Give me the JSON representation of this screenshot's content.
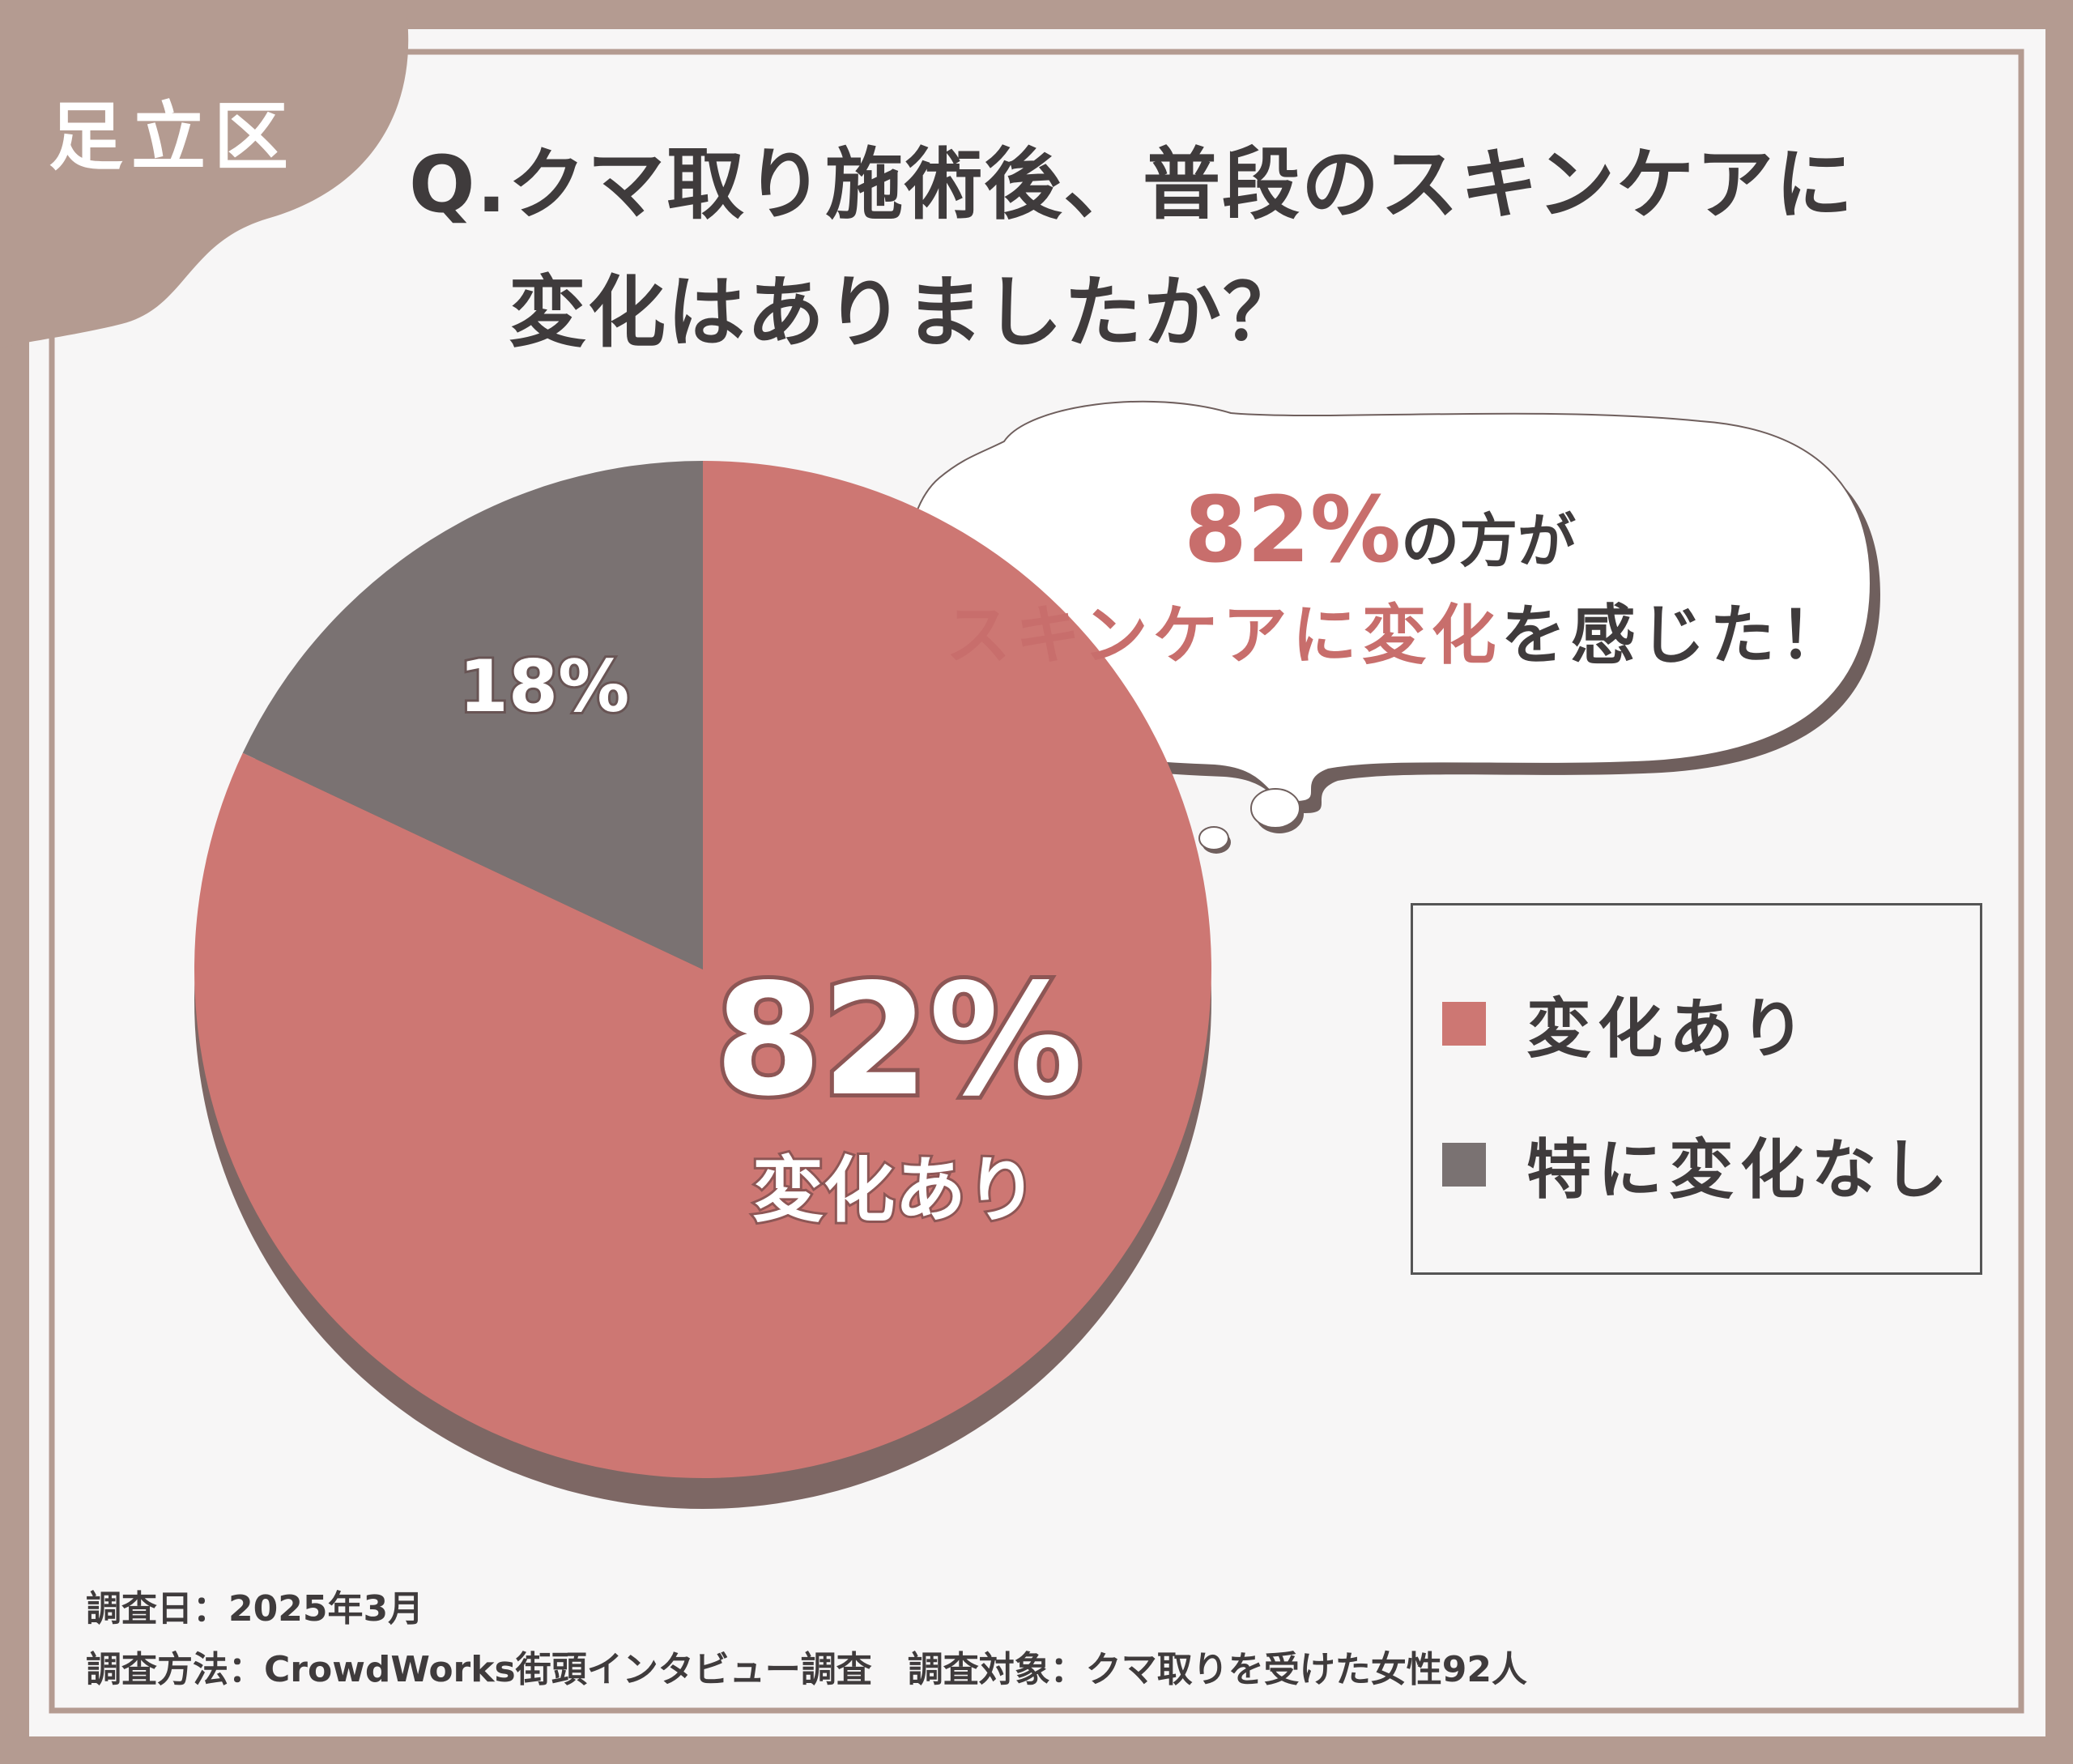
{
  "region_tag": "足立区",
  "title": {
    "line1": "Q.クマ取り施術後、普段のスキンケアに",
    "line2": "変化はありましたか？"
  },
  "callout": {
    "percent": "82%",
    "line1_suffix": "の方が",
    "line2_highlight": "スキンケアに変化",
    "line2_suffix": "を感じた！"
  },
  "colors": {
    "background": "#b49b91",
    "panel": "#f7f6f6",
    "change": "#cd7773",
    "no_change": "#7a7272",
    "pie_shadow": "#7d6764",
    "accent_text": "#c86e6c",
    "dark_text": "#3f3b3c"
  },
  "chart_data": {
    "type": "pie",
    "categories": [
      "変化あり",
      "特に変化なし"
    ],
    "values": [
      82,
      18
    ],
    "unit": "%",
    "slice_labels": {
      "main_percent": "82%",
      "main_caption": "変化あり",
      "minor_percent": "18%"
    },
    "legend": {
      "placement": "right",
      "entries": [
        "変化あり",
        "特に変化なし"
      ]
    }
  },
  "footer": {
    "line1": "調査日：2025年3月",
    "line2": "調査方法：CrowdWorks街頭インタビュー調査　調査対象：クマ取りを受けた女性92人"
  }
}
